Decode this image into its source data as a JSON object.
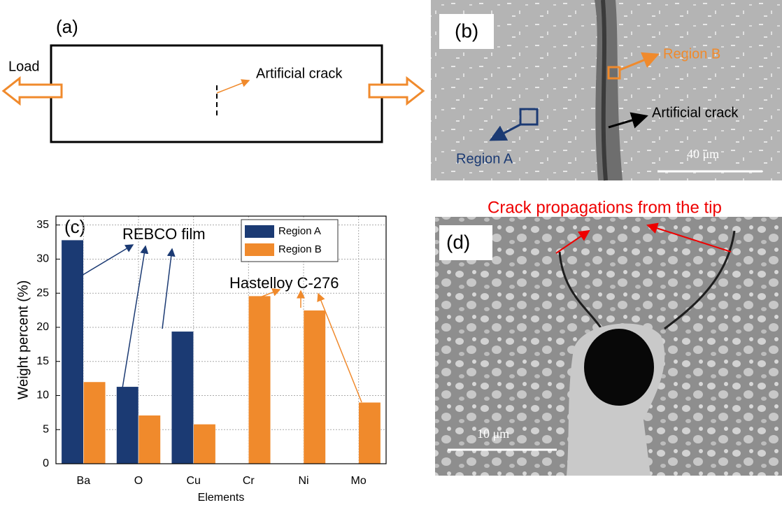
{
  "panel_a": {
    "label": "(a)",
    "load": "Load",
    "crack": "Artificial crack"
  },
  "panel_b": {
    "label": "(b)",
    "region_b": "Region B",
    "crack": "Artificial crack",
    "region_a": "Region A",
    "scale": "40 μm"
  },
  "chart_data": {
    "type": "bar",
    "panel_label": "(c)",
    "x_label": "Elements",
    "y_label": "Weight percent (%)",
    "annotations": [
      "REBCO film",
      "Hastelloy C-276"
    ],
    "categories": [
      "Ba",
      "O",
      "Cu",
      "Cr",
      "Ni",
      "Mo"
    ],
    "series": [
      {
        "name": "Region A",
        "color": "#1b3a73",
        "values": [
          32.8,
          11.3,
          19.4,
          0,
          0,
          0
        ]
      },
      {
        "name": "Region B",
        "color": "#f08a2c",
        "values": [
          12.0,
          7.1,
          5.8,
          24.6,
          22.5,
          9.0
        ]
      }
    ],
    "ylim": [
      0,
      36.3
    ],
    "yticks": [
      0,
      5,
      10,
      15,
      20,
      25,
      30,
      35
    ],
    "grid": true
  },
  "panel_d": {
    "label": "(d)",
    "caption": "Crack propagations from the tip",
    "scale": "10 μm"
  }
}
